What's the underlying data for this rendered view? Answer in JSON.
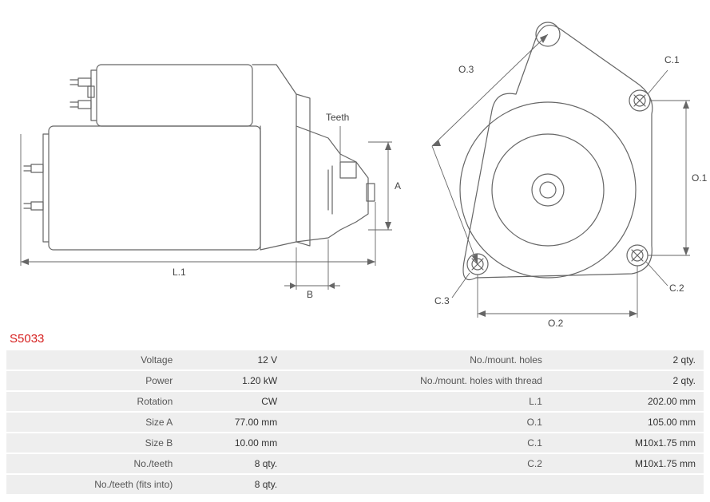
{
  "part_number": "S5033",
  "labels": {
    "teeth": "Teeth",
    "A": "A",
    "B": "B",
    "L1": "L.1",
    "O1": "O.1",
    "O2": "O.2",
    "O3": "O.3",
    "C1": "C.1",
    "C2": "C.2",
    "C3": "C.3"
  },
  "specs": [
    {
      "l": "Voltage",
      "v": "12 V",
      "l2": "No./mount. holes",
      "v2": "2 qty."
    },
    {
      "l": "Power",
      "v": "1.20 kW",
      "l2": "No./mount. holes with thread",
      "v2": "2 qty."
    },
    {
      "l": "Rotation",
      "v": "CW",
      "l2": "L.1",
      "v2": "202.00 mm"
    },
    {
      "l": "Size A",
      "v": "77.00 mm",
      "l2": "O.1",
      "v2": "105.00 mm"
    },
    {
      "l": "Size B",
      "v": "10.00 mm",
      "l2": "C.1",
      "v2": "M10x1.75 mm"
    },
    {
      "l": "No./teeth",
      "v": "8 qty.",
      "l2": "C.2",
      "v2": "M10x1.75 mm"
    },
    {
      "l": "No./teeth (fits into)",
      "v": "8 qty.",
      "l2": "",
      "v2": ""
    }
  ],
  "style": {
    "stroke": "#666666",
    "stroke_w": 1.2,
    "dim_stroke": "#666666",
    "dim_w": 0.9,
    "bg": "#ffffff",
    "part_color": "#d6201f",
    "row_bg": "#eeeeee",
    "text_color": "#444444",
    "font": "Verdana, Arial, sans-serif",
    "label_fontsize": 12,
    "part_fontsize": 15,
    "fig1_w": 480,
    "fig1_h": 370,
    "fig2_w": 360,
    "fig2_h": 400
  }
}
